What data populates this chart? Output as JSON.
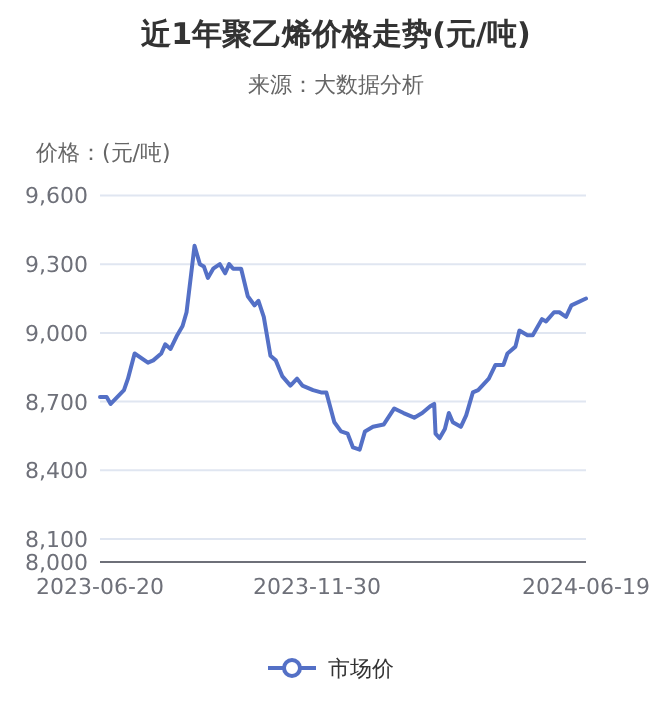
{
  "chart_data": {
    "type": "line",
    "title": "近1年聚乙烯价格走势(元/吨)",
    "subtitle": "来源：大数据分析",
    "ylabel": "价格：(元/吨)",
    "xlim": [
      "2023-06-20",
      "2024-06-19"
    ],
    "xticks": [
      "2023-06-20",
      "2023-11-30",
      "2024-06-19"
    ],
    "ylim": [
      8000,
      9600
    ],
    "yticks": [
      {
        "value": 8000,
        "label": "8,000"
      },
      {
        "value": 8100,
        "label": "8,100"
      },
      {
        "value": 8400,
        "label": "8,400"
      },
      {
        "value": 8700,
        "label": "8,700"
      },
      {
        "value": 9000,
        "label": "9,000"
      },
      {
        "value": 9300,
        "label": "9,300"
      },
      {
        "value": 9600,
        "label": "9,600"
      }
    ],
    "grid": "y",
    "legend": "bottom",
    "line_style": "solid",
    "series": [
      {
        "name": "市场价",
        "color": "#5470c6",
        "x": [
          "2023-06-20",
          "2023-06-25",
          "2023-06-28",
          "2023-07-08",
          "2023-07-11",
          "2023-07-16",
          "2023-07-26",
          "2023-07-30",
          "2023-08-05",
          "2023-08-08",
          "2023-08-12",
          "2023-08-17",
          "2023-08-21",
          "2023-08-24",
          "2023-08-30",
          "2023-09-03",
          "2023-09-06",
          "2023-09-09",
          "2023-09-13",
          "2023-09-18",
          "2023-09-22",
          "2023-09-25",
          "2023-09-28",
          "2023-10-04",
          "2023-10-09",
          "2023-10-14",
          "2023-10-17",
          "2023-10-21",
          "2023-10-26",
          "2023-10-30",
          "2023-11-04",
          "2023-11-10",
          "2023-11-15",
          "2023-11-19",
          "2023-11-27",
          "2023-12-03",
          "2023-12-07",
          "2023-12-13",
          "2023-12-18",
          "2023-12-23",
          "2023-12-27",
          "2024-01-01",
          "2024-01-05",
          "2024-01-11",
          "2024-01-19",
          "2024-01-27",
          "2024-02-03",
          "2024-02-11",
          "2024-02-17",
          "2024-02-23",
          "2024-02-26",
          "2024-02-27",
          "2024-03-01",
          "2024-03-05",
          "2024-03-08",
          "2024-03-11",
          "2024-03-17",
          "2024-03-21",
          "2024-03-26",
          "2024-03-30",
          "2024-04-07",
          "2024-04-12",
          "2024-04-18",
          "2024-04-21",
          "2024-04-27",
          "2024-04-30",
          "2024-05-06",
          "2024-05-10",
          "2024-05-17",
          "2024-05-20",
          "2024-05-26",
          "2024-05-30",
          "2024-06-04",
          "2024-06-08",
          "2024-06-19"
        ],
        "values": [
          8720,
          8720,
          8690,
          8750,
          8800,
          8910,
          8870,
          8880,
          8910,
          8950,
          8930,
          8990,
          9030,
          9090,
          9380,
          9300,
          9290,
          9240,
          9280,
          9300,
          9260,
          9300,
          9280,
          9280,
          9160,
          9120,
          9140,
          9070,
          8900,
          8880,
          8810,
          8770,
          8800,
          8770,
          8750,
          8740,
          8740,
          8610,
          8570,
          8560,
          8500,
          8490,
          8570,
          8590,
          8600,
          8670,
          8650,
          8630,
          8650,
          8680,
          8690,
          8560,
          8540,
          8580,
          8650,
          8610,
          8590,
          8640,
          8740,
          8750,
          8800,
          8860,
          8860,
          8910,
          8940,
          9010,
          8990,
          8990,
          9060,
          9050,
          9090,
          9090,
          9070,
          9120,
          9150
        ]
      }
    ]
  }
}
